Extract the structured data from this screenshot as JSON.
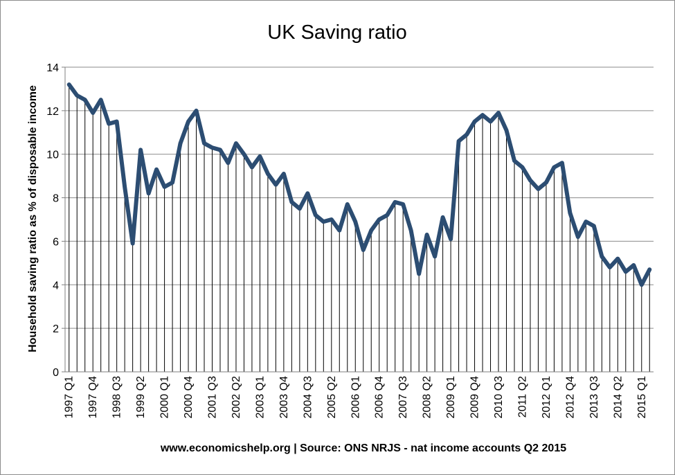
{
  "chart_data": {
    "type": "line",
    "title": "UK Saving ratio",
    "ylabel": "Household saving ratio as % of disposable income",
    "xlabel": "www.economicshelp.org | Source: ONS NRJS - nat income accounts Q2 2015",
    "ylim": [
      0,
      14
    ],
    "yticks": [
      0,
      2,
      4,
      6,
      8,
      10,
      12,
      14
    ],
    "grid": true,
    "drop_lines": true,
    "line_color": "#2c4d72",
    "x_tick_labels": [
      "1997 Q1",
      "1997 Q4",
      "1998 Q3",
      "1999 Q2",
      "2000 Q1",
      "2000 Q4",
      "2001 Q3",
      "2002 Q2",
      "2003 Q1",
      "2003 Q4",
      "2004 Q3",
      "2005 Q2",
      "2006 Q1",
      "2006 Q4",
      "2007 Q3",
      "2008 Q2",
      "2009 Q1",
      "2009 Q4",
      "2010 Q3",
      "2011 Q2",
      "2012 Q1",
      "2012 Q4",
      "2013 Q3",
      "2014 Q2",
      "2015 Q1"
    ],
    "x_tick_every": 3,
    "series": [
      {
        "values": [
          13.2,
          12.7,
          12.5,
          11.9,
          12.5,
          11.4,
          11.5,
          8.5,
          5.9,
          10.2,
          8.2,
          9.3,
          8.5,
          8.7,
          10.5,
          11.5,
          12.0,
          10.5,
          10.3,
          10.2,
          9.6,
          10.5,
          10.0,
          9.4,
          9.9,
          9.1,
          8.6,
          9.1,
          7.8,
          7.5,
          8.2,
          7.2,
          6.9,
          7.0,
          6.5,
          7.7,
          6.9,
          5.6,
          6.5,
          7.0,
          7.2,
          7.8,
          7.7,
          6.5,
          4.5,
          6.3,
          5.3,
          7.1,
          6.1,
          10.6,
          10.9,
          11.5,
          11.8,
          11.5,
          11.9,
          11.1,
          9.7,
          9.4,
          8.8,
          8.4,
          8.7,
          9.4,
          9.6,
          7.3,
          6.2,
          6.9,
          6.7,
          5.3,
          4.8,
          5.2,
          4.6,
          4.9,
          4.0,
          4.7
        ]
      }
    ]
  }
}
